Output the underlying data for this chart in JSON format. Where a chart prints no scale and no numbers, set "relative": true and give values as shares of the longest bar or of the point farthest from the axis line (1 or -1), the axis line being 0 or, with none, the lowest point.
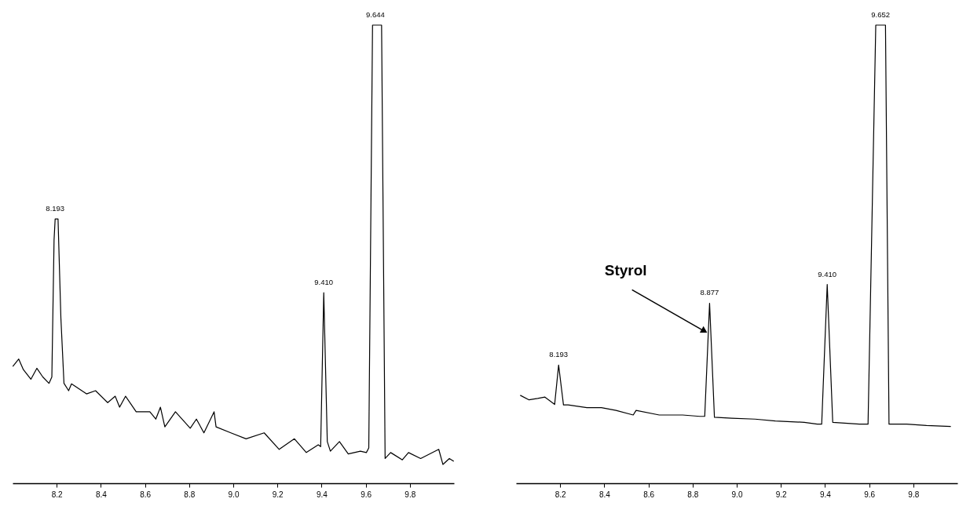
{
  "chart_data": [
    {
      "type": "line",
      "relative": true,
      "xlim": [
        8.0,
        10.0
      ],
      "xticks": [
        8.2,
        8.4,
        8.6,
        8.8,
        {
          "value": 9,
          "label": "9.0"
        },
        9.2,
        9.4,
        9.6,
        9.8
      ],
      "series": [
        {
          "color": "#000000",
          "x": [
            8.001,
            8.028,
            8.049,
            8.083,
            8.11,
            8.137,
            8.165,
            8.178,
            8.188,
            8.193,
            8.206,
            8.219,
            8.233,
            8.254,
            8.267,
            8.335,
            8.376,
            8.431,
            8.465,
            8.485,
            8.512,
            8.56,
            8.622,
            8.649,
            8.67,
            8.69,
            8.738,
            8.805,
            8.833,
            8.867,
            8.913,
            8.922,
            8.989,
            9.058,
            9.14,
            9.208,
            9.277,
            9.331,
            9.385,
            9.396,
            9.41,
            9.426,
            9.44,
            9.481,
            9.521,
            9.576,
            9.603,
            9.614,
            9.631,
            9.644,
            9.672,
            9.688,
            9.713,
            9.766,
            9.794,
            9.849,
            9.931,
            9.95,
            9.979,
            9.999
          ],
          "values": [
            0.255,
            0.271,
            0.248,
            0.227,
            0.251,
            0.232,
            0.218,
            0.232,
            0.531,
            0.577,
            0.577,
            0.36,
            0.218,
            0.202,
            0.217,
            0.195,
            0.202,
            0.176,
            0.19,
            0.166,
            0.19,
            0.156,
            0.156,
            0.14,
            0.166,
            0.123,
            0.156,
            0.12,
            0.14,
            0.11,
            0.156,
            0.123,
            0.11,
            0.097,
            0.11,
            0.074,
            0.097,
            0.067,
            0.084,
            0.08,
            0.416,
            0.091,
            0.07,
            0.091,
            0.064,
            0.07,
            0.067,
            0.077,
            1,
            1,
            1,
            0.054,
            0.067,
            0.051,
            0.067,
            0.054,
            0.074,
            0.041,
            0.054,
            0.048
          ]
        }
      ],
      "annotations": [
        {
          "text": "8.193",
          "x": 8.193,
          "y": 0.577
        },
        {
          "text": "9.410",
          "x": 9.41,
          "y": 0.416
        },
        {
          "text": "9.644",
          "x": 9.644,
          "y": 1
        }
      ]
    },
    {
      "type": "line",
      "relative": true,
      "xlim": [
        8.0,
        10.0
      ],
      "xticks": [
        8.2,
        8.4,
        8.6,
        8.8,
        {
          "value": 9,
          "label": "9.0"
        },
        9.2,
        9.4,
        9.6,
        9.8
      ],
      "series": [
        {
          "color": "#000000",
          "x": [
            8.019,
            8.059,
            8.098,
            8.131,
            8.175,
            8.193,
            8.215,
            8.236,
            8.321,
            8.387,
            8.453,
            8.531,
            8.544,
            8.649,
            8.755,
            8.833,
            8.855,
            8.877,
            8.899,
            8.978,
            9.083,
            9.175,
            9.306,
            9.365,
            9.385,
            9.41,
            9.435,
            9.556,
            9.595,
            9.63,
            9.652,
            9.674,
            9.69,
            9.77,
            9.86,
            9.97
          ],
          "values": [
            0.192,
            0.182,
            0.185,
            0.188,
            0.172,
            0.258,
            0.171,
            0.171,
            0.165,
            0.165,
            0.159,
            0.149,
            0.159,
            0.149,
            0.149,
            0.146,
            0.146,
            0.393,
            0.144,
            0.142,
            0.14,
            0.136,
            0.133,
            0.129,
            0.129,
            0.434,
            0.133,
            0.129,
            0.129,
            1,
            1,
            1,
            0.129,
            0.129,
            0.126,
            0.124
          ]
        }
      ],
      "annotations": [
        {
          "text": "8.193",
          "x": 8.193,
          "y": 0.258
        },
        {
          "text": "8.877",
          "x": 8.877,
          "y": 0.393
        },
        {
          "text": "9.410",
          "x": 9.41,
          "y": 0.434
        },
        {
          "text": "9.652",
          "x": 9.652,
          "y": 1
        },
        {
          "text": "Styrol",
          "x": 8.86,
          "y": 0.33
        }
      ]
    }
  ]
}
